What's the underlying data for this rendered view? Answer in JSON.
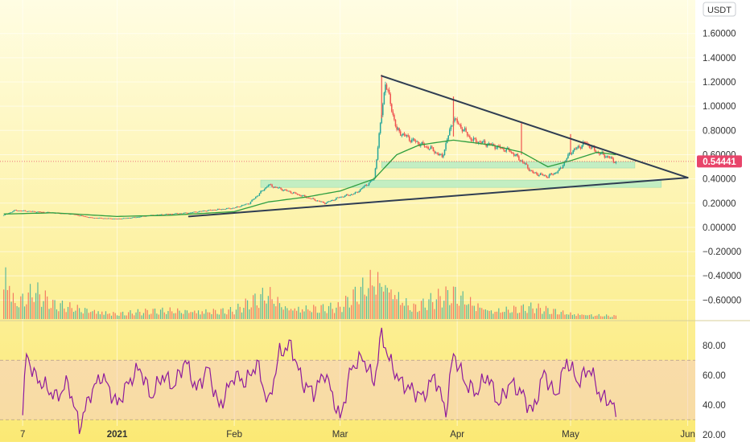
{
  "colors": {
    "background_top": "#fffde3",
    "background_bottom": "#fbe974",
    "candle_up": "#26a69a",
    "candle_down": "#ef5350",
    "moving_average": "#2e9e3f",
    "trendline": "#2f3d52",
    "zone": "#b8ecc4",
    "rsi_line": "#8e1a9c",
    "rsi_band": "#f5cfc4",
    "price_badge": "#e8446a"
  },
  "chart_data": {
    "type": "candlestick",
    "symbol_currency": "USDT",
    "last_price": 0.54441,
    "last_price_label": "0.54441",
    "price_axis": {
      "ticks": [
        1.6,
        1.4,
        1.2,
        1.0,
        0.8,
        0.6,
        0.4,
        0.2,
        0.0,
        -0.2,
        -0.4,
        -0.6
      ],
      "labels": [
        "1.60000",
        "1.40000",
        "1.20000",
        "1.00000",
        "0.80000",
        "0.60000",
        "0.40000",
        "0.20000",
        "0.00000",
        "−0.20000",
        "−0.40000",
        "−0.60000"
      ],
      "ylim": [
        -0.75,
        1.85
      ]
    },
    "time_axis": {
      "labels": [
        "7",
        "2021",
        "Feb",
        "Mar",
        "Apr",
        "May",
        "Jun"
      ],
      "tick_dates": [
        "2020-12-07",
        "2021-01-01",
        "2021-02-01",
        "2021-03-01",
        "2021-04-01",
        "2021-05-01",
        "2021-06-01"
      ],
      "xlim": [
        "2020-12-01",
        "2021-06-03"
      ]
    },
    "price_series": {
      "dates": [
        "2020-12-02",
        "2020-12-05",
        "2020-12-10",
        "2020-12-15",
        "2020-12-20",
        "2020-12-25",
        "2021-01-01",
        "2021-01-05",
        "2021-01-10",
        "2021-01-15",
        "2021-01-20",
        "2021-01-25",
        "2021-02-01",
        "2021-02-05",
        "2021-02-10",
        "2021-02-15",
        "2021-02-20",
        "2021-02-25",
        "2021-03-01",
        "2021-03-05",
        "2021-03-10",
        "2021-03-13",
        "2021-03-16",
        "2021-03-20",
        "2021-03-25",
        "2021-03-28",
        "2021-03-31",
        "2021-04-05",
        "2021-04-10",
        "2021-04-15",
        "2021-04-18",
        "2021-04-21",
        "2021-04-25",
        "2021-04-28",
        "2021-05-01",
        "2021-05-05",
        "2021-05-08",
        "2021-05-11",
        "2021-05-13"
      ],
      "values": [
        0.1,
        0.14,
        0.13,
        0.12,
        0.11,
        0.08,
        0.07,
        0.08,
        0.1,
        0.11,
        0.12,
        0.14,
        0.16,
        0.2,
        0.35,
        0.3,
        0.25,
        0.2,
        0.25,
        0.28,
        0.4,
        1.2,
        0.8,
        0.72,
        0.65,
        0.58,
        0.9,
        0.72,
        0.68,
        0.63,
        0.55,
        0.45,
        0.42,
        0.47,
        0.62,
        0.7,
        0.62,
        0.58,
        0.54
      ]
    },
    "moving_average": {
      "dates": [
        "2020-12-02",
        "2020-12-15",
        "2021-01-01",
        "2021-01-15",
        "2021-02-01",
        "2021-02-10",
        "2021-02-20",
        "2021-03-01",
        "2021-03-10",
        "2021-03-16",
        "2021-03-22",
        "2021-03-31",
        "2021-04-10",
        "2021-04-18",
        "2021-04-25",
        "2021-05-01",
        "2021-05-08",
        "2021-05-13"
      ],
      "values": [
        0.11,
        0.12,
        0.09,
        0.1,
        0.13,
        0.21,
        0.25,
        0.3,
        0.4,
        0.6,
        0.68,
        0.72,
        0.68,
        0.62,
        0.5,
        0.55,
        0.62,
        0.6
      ]
    },
    "volume": {
      "dates": [
        "2020-12-02",
        "2020-12-05",
        "2020-12-10",
        "2020-12-15",
        "2021-01-01",
        "2021-01-15",
        "2021-02-01",
        "2021-02-10",
        "2021-02-15",
        "2021-03-01",
        "2021-03-08",
        "2021-03-10",
        "2021-03-12",
        "2021-03-20",
        "2021-03-31",
        "2021-04-10",
        "2021-04-21",
        "2021-05-01",
        "2021-05-13"
      ],
      "values": [
        100,
        30,
        50,
        25,
        10,
        15,
        15,
        45,
        20,
        20,
        60,
        75,
        70,
        20,
        45,
        15,
        20,
        10,
        5
      ]
    },
    "trendlines": [
      {
        "start": [
          "2021-03-12",
          1.25
        ],
        "end": [
          "2021-06-01",
          0.41
        ]
      },
      {
        "start": [
          "2021-01-20",
          0.09
        ],
        "end": [
          "2021-06-01",
          0.41
        ]
      }
    ],
    "zones": [
      {
        "start": "2021-03-12",
        "end": "2021-05-18",
        "low": 0.49,
        "high": 0.54
      },
      {
        "start": "2021-02-08",
        "end": "2021-05-25",
        "low": 0.33,
        "high": 0.39
      }
    ],
    "rsi": {
      "ticks": [
        80,
        60,
        40,
        20
      ],
      "labels": [
        "80.00",
        "60.00",
        "40.00",
        "20.00"
      ],
      "ylim": [
        15,
        95
      ],
      "band": [
        30,
        70
      ],
      "dates": [
        "2020-12-07",
        "2020-12-08",
        "2020-12-10",
        "2020-12-13",
        "2020-12-16",
        "2020-12-19",
        "2020-12-22",
        "2020-12-25",
        "2020-12-28",
        "2021-01-01",
        "2021-01-04",
        "2021-01-07",
        "2021-01-10",
        "2021-01-13",
        "2021-01-16",
        "2021-01-19",
        "2021-01-22",
        "2021-01-25",
        "2021-01-28",
        "2021-02-01",
        "2021-02-04",
        "2021-02-07",
        "2021-02-10",
        "2021-02-13",
        "2021-02-16",
        "2021-02-19",
        "2021-02-22",
        "2021-02-25",
        "2021-03-01",
        "2021-03-04",
        "2021-03-07",
        "2021-03-10",
        "2021-03-12",
        "2021-03-14",
        "2021-03-17",
        "2021-03-20",
        "2021-03-23",
        "2021-03-26",
        "2021-03-29",
        "2021-03-31",
        "2021-04-03",
        "2021-04-06",
        "2021-04-09",
        "2021-04-12",
        "2021-04-15",
        "2021-04-18",
        "2021-04-21",
        "2021-04-24",
        "2021-04-27",
        "2021-04-30",
        "2021-05-03",
        "2021-05-06",
        "2021-05-09",
        "2021-05-12",
        "2021-05-13"
      ],
      "values": [
        33,
        75,
        60,
        52,
        45,
        55,
        25,
        48,
        60,
        40,
        55,
        65,
        45,
        60,
        52,
        70,
        50,
        65,
        38,
        60,
        55,
        68,
        40,
        75,
        80,
        55,
        48,
        62,
        30,
        65,
        72,
        55,
        88,
        70,
        55,
        50,
        45,
        60,
        35,
        75,
        55,
        48,
        60,
        40,
        55,
        48,
        35,
        62,
        45,
        70,
        55,
        65,
        45,
        42,
        30
      ]
    }
  }
}
